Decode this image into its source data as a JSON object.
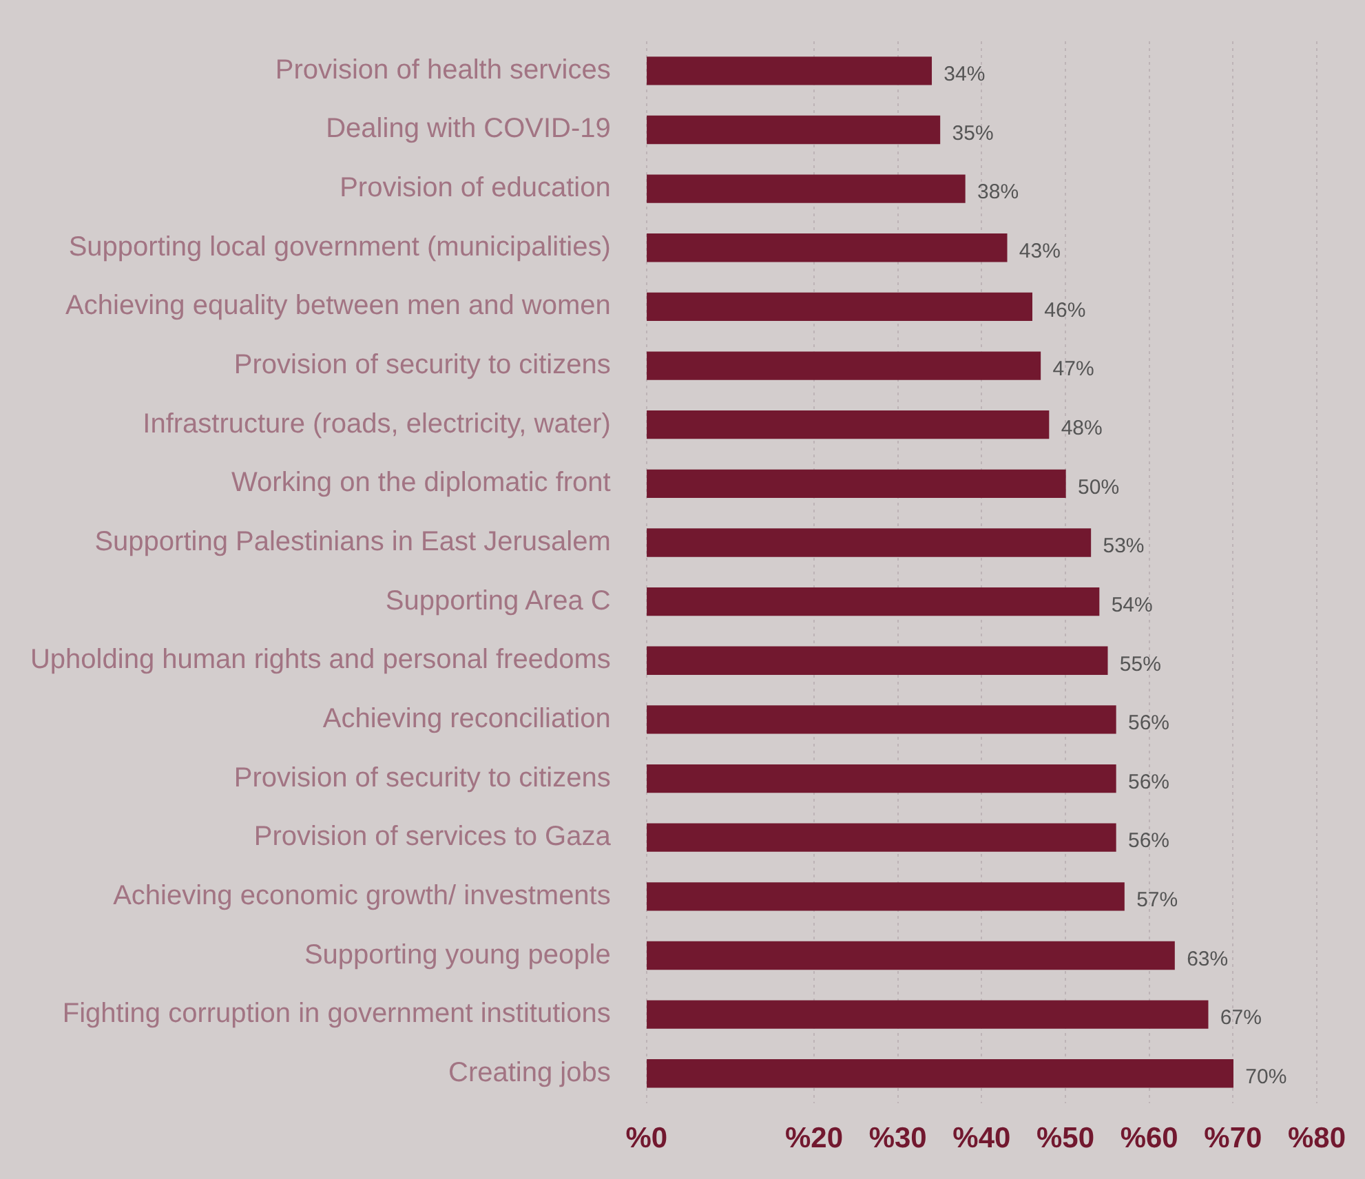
{
  "chart_data": {
    "type": "bar",
    "orientation": "horizontal",
    "categories": [
      "Provision of health services",
      "Dealing with COVID-19",
      "Provision of education",
      "Supporting local government (municipalities)",
      "Achieving equality between men and women",
      "Provision of security to citizens",
      "Infrastructure (roads, electricity, water)",
      "Working on the diplomatic front",
      "Supporting Palestinians in East Jerusalem",
      "Supporting Area C",
      "Upholding human rights and personal freedoms",
      "Achieving reconciliation",
      "Provision of security to citizens",
      "Provision of services to Gaza",
      "Achieving economic growth/ investments",
      "Supporting young people",
      "Fighting corruption in government institutions",
      "Creating jobs"
    ],
    "values": [
      34,
      35,
      38,
      43,
      46,
      47,
      48,
      50,
      53,
      54,
      55,
      56,
      56,
      56,
      57,
      63,
      67,
      70
    ],
    "value_labels": [
      "34%",
      "35%",
      "38%",
      "43%",
      "46%",
      "47%",
      "48%",
      "50%",
      "53%",
      "54%",
      "55%",
      "56%",
      "56%",
      "56%",
      "57%",
      "63%",
      "67%",
      "70%"
    ],
    "color": "#72182f",
    "xlim": [
      0,
      80
    ],
    "xticks": [
      {
        "value": 0,
        "label": "%0"
      },
      {
        "value": 20,
        "label": "%20"
      },
      {
        "value": 30,
        "label": "%30"
      },
      {
        "value": 40,
        "label": "%40"
      },
      {
        "value": 50,
        "label": "%50"
      },
      {
        "value": 60,
        "label": "%60"
      },
      {
        "value": 70,
        "label": "%70"
      },
      {
        "value": 80,
        "label": "%80"
      }
    ],
    "grid": "x",
    "legend": false
  }
}
